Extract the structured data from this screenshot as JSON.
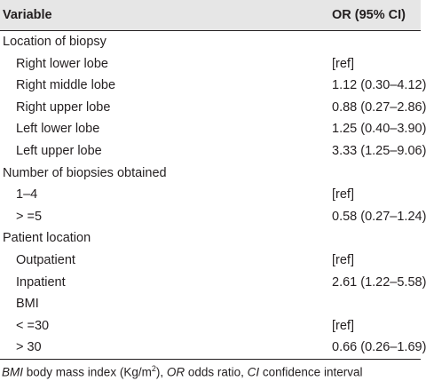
{
  "header": {
    "variable": "Variable",
    "or": "OR (95% CI)"
  },
  "groups": [
    {
      "label": "Location of biopsy",
      "items": [
        {
          "label": "Right lower lobe",
          "value": "[ref]"
        },
        {
          "label": "Right middle lobe",
          "value": "1.12 (0.30–4.12)"
        },
        {
          "label": "Right upper lobe",
          "value": "0.88 (0.27–2.86)"
        },
        {
          "label": "Left lower lobe",
          "value": "1.25 (0.40–3.90)"
        },
        {
          "label": "Left upper lobe",
          "value": "3.33 (1.25–9.06)"
        }
      ]
    },
    {
      "label": "Number of biopsies obtained",
      "items": [
        {
          "label": "1–4",
          "value": "[ref]"
        },
        {
          "label": "> =5",
          "value": "0.58 (0.27–1.24)"
        }
      ]
    },
    {
      "label": "Patient location",
      "items": [
        {
          "label": "Outpatient",
          "value": "[ref]"
        },
        {
          "label": "Inpatient",
          "value": "2.61 (1.22–5.58)"
        },
        {
          "label": "BMI"
        },
        {
          "label": "< =30",
          "value": "[ref]"
        },
        {
          "label": "> 30",
          "value": "0.66 (0.26–1.69)"
        }
      ]
    }
  ],
  "footnote": [
    "BMI",
    " body mass index (Kg/m",
    "2",
    "), ",
    "OR",
    " odds ratio, ",
    "CI",
    " confidence interval"
  ]
}
